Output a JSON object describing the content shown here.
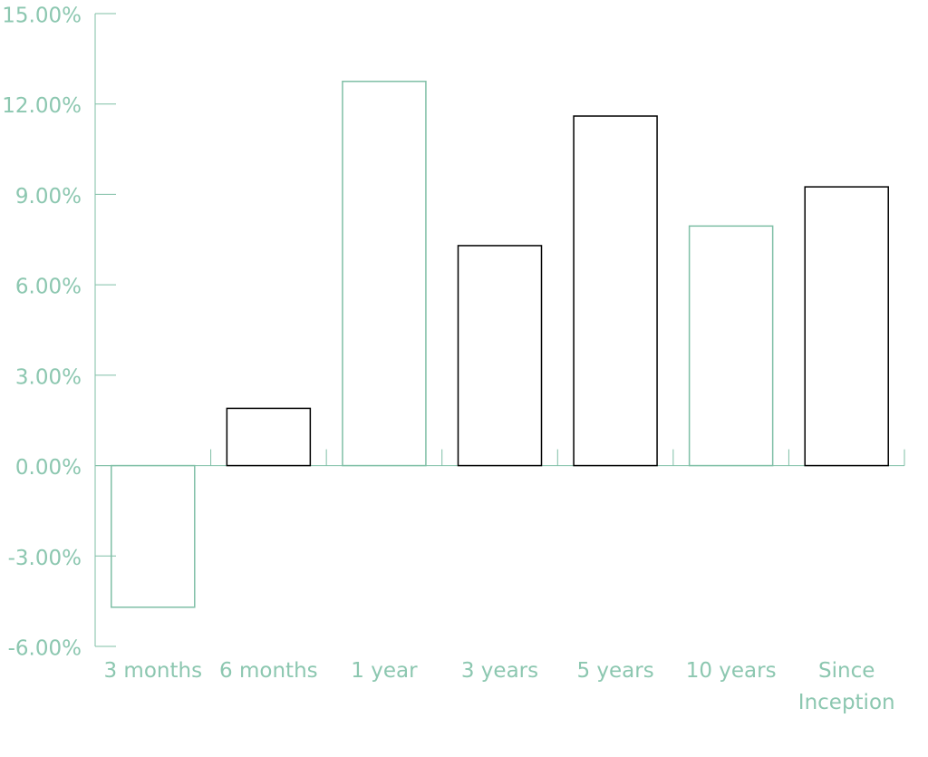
{
  "chart_data": {
    "type": "bar",
    "categories": [
      "3 months",
      "6 months",
      "1 year",
      "3 years",
      "5 years",
      "10 years",
      "Since Inception"
    ],
    "values": [
      -4.7,
      1.9,
      12.75,
      7.3,
      11.6,
      7.95,
      9.25
    ],
    "colors": [
      "#7fbfa6",
      "#000000",
      "#7fbfa6",
      "#000000",
      "#000000",
      "#7fbfa6",
      "#000000"
    ],
    "ylim": [
      -6,
      15
    ],
    "yticks": [
      {
        "value": -6,
        "label": "-6.00%"
      },
      {
        "value": -3,
        "label": "-3.00%"
      },
      {
        "value": 0,
        "label": "0.00%"
      },
      {
        "value": 3,
        "label": "3.00%"
      },
      {
        "value": 6,
        "label": "6.00%"
      },
      {
        "value": 9,
        "label": "9.00%"
      },
      {
        "value": 12,
        "label": "12.00%"
      },
      {
        "value": 15,
        "label": "15.00%"
      }
    ],
    "axis_color": "#7fbfa6"
  }
}
